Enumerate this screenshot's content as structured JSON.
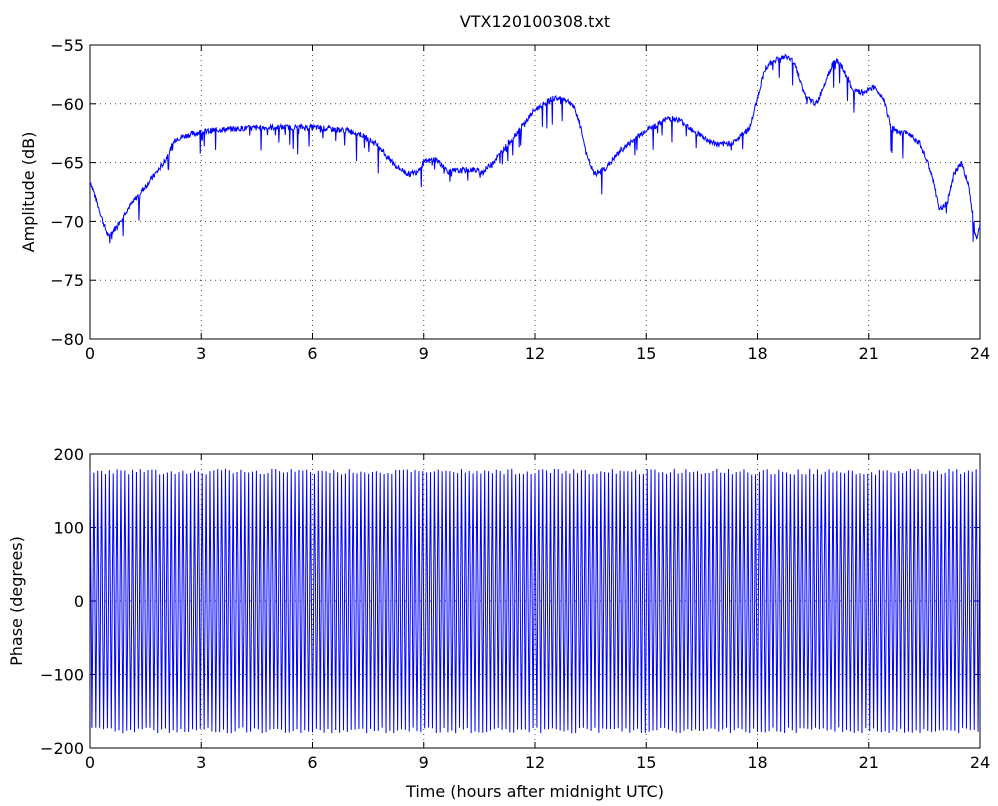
{
  "chart_data": [
    {
      "type": "line",
      "title": "VTX120100308.txt",
      "xlabel": "",
      "ylabel": "Amplitude (dB)",
      "xlim": [
        0,
        24
      ],
      "ylim": [
        -80,
        -55
      ],
      "xticks": [
        "0",
        "3",
        "6",
        "9",
        "12",
        "15",
        "18",
        "21",
        "24"
      ],
      "yticks": [
        "−55",
        "−60",
        "−65",
        "−70",
        "−75",
        "−80"
      ],
      "grid": true,
      "series": [
        {
          "color": "#0000ff",
          "x": [
            0,
            0.2,
            0.4,
            0.5,
            0.7,
            1.0,
            1.5,
            2.0,
            2.3,
            2.7,
            3.0,
            3.5,
            4.0,
            5.0,
            6.0,
            7.0,
            7.3,
            7.6,
            7.8,
            7.9,
            8.0,
            8.3,
            8.6,
            8.8,
            9.0,
            9.3,
            9.5,
            9.6,
            9.7,
            9.9,
            10.3,
            10.6,
            11.0,
            11.5,
            12.0,
            12.5,
            12.8,
            13.0,
            13.2,
            13.4,
            13.6,
            13.9,
            14.3,
            14.7,
            15.0,
            15.3,
            15.6,
            15.9,
            16.3,
            16.7,
            17.0,
            17.4,
            17.8,
            18.0,
            18.2,
            18.5,
            18.8,
            19.0,
            19.3,
            19.6,
            19.9,
            20.1,
            20.3,
            20.6,
            20.9,
            21.1,
            21.4,
            21.6,
            21.8,
            22.1,
            22.4,
            22.7,
            22.9,
            23.1,
            23.3,
            23.5,
            23.7,
            23.9,
            24.0
          ],
          "y": [
            -66.5,
            -68.5,
            -70.5,
            -71.3,
            -70.5,
            -69.0,
            -67.0,
            -65.0,
            -63.0,
            -62.6,
            -62.4,
            -62.2,
            -62.1,
            -62.0,
            -62.0,
            -62.3,
            -62.6,
            -63.2,
            -63.6,
            -64.0,
            -64.5,
            -65.4,
            -66.0,
            -65.8,
            -65.0,
            -64.7,
            -65.2,
            -65.6,
            -65.8,
            -65.7,
            -65.6,
            -65.8,
            -64.5,
            -62.5,
            -60.5,
            -59.5,
            -59.6,
            -60.0,
            -61.5,
            -64.5,
            -66.0,
            -65.5,
            -64.0,
            -63.0,
            -62.2,
            -61.8,
            -61.2,
            -61.4,
            -62.3,
            -63.2,
            -63.5,
            -63.2,
            -62.0,
            -59.5,
            -57.0,
            -56.2,
            -56.0,
            -56.5,
            -59.5,
            -60.0,
            -57.5,
            -56.2,
            -57.0,
            -59.0,
            -59.0,
            -58.5,
            -59.5,
            -62.0,
            -62.5,
            -62.5,
            -63.5,
            -66.0,
            -69.0,
            -68.5,
            -66.0,
            -65.0,
            -67.0,
            -71.5,
            -70.0
          ]
        }
      ]
    },
    {
      "type": "line",
      "title": "",
      "xlabel": "Time (hours after midnight UTC)",
      "ylabel": "Phase (degrees)",
      "xlim": [
        0,
        24
      ],
      "ylim": [
        -200,
        200
      ],
      "xticks": [
        "0",
        "3",
        "6",
        "9",
        "12",
        "15",
        "18",
        "21",
        "24"
      ],
      "yticks": [
        "200",
        "100",
        "0",
        "−100",
        "−200"
      ],
      "grid": true,
      "series": [
        {
          "color": "#0000ff",
          "pattern": "sawtooth wrapping between -180 and 180",
          "wraps": 230,
          "min": -180,
          "max": 180
        }
      ]
    }
  ]
}
